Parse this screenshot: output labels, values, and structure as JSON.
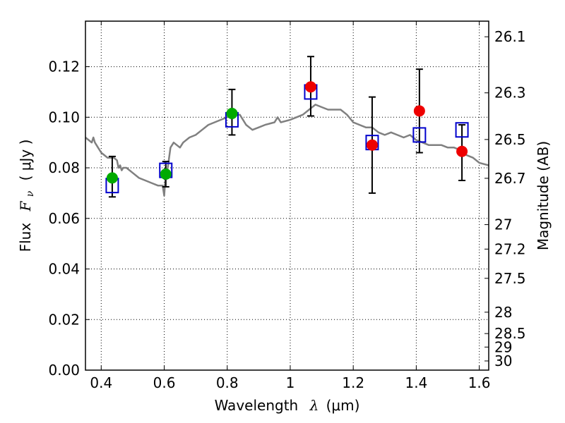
{
  "chart_data": {
    "type": "scatter",
    "title": "",
    "xlabel": {
      "prefix": "Wavelength",
      "symbol": "λ",
      "unit": "(μm)"
    },
    "ylabel": {
      "prefix": "Flux",
      "symbol": "F",
      "subscript": "ν",
      "unit": "( μJy )"
    },
    "y2label": "Magnitude (AB)",
    "xlim": [
      0.35,
      1.63
    ],
    "ylim": [
      0.0,
      0.138
    ],
    "grid": true,
    "legend": "none",
    "x_ticks": [
      {
        "value": 0.4,
        "label": "0.4"
      },
      {
        "value": 0.6,
        "label": "0.6"
      },
      {
        "value": 0.8,
        "label": "0.8"
      },
      {
        "value": 1.0,
        "label": "1"
      },
      {
        "value": 1.2,
        "label": "1.2"
      },
      {
        "value": 1.4,
        "label": "1.4"
      },
      {
        "value": 1.6,
        "label": "1.6"
      }
    ],
    "y_ticks": [
      {
        "value": 0.0,
        "label": "0.00"
      },
      {
        "value": 0.02,
        "label": "0.02"
      },
      {
        "value": 0.04,
        "label": "0.04"
      },
      {
        "value": 0.06,
        "label": "0.06"
      },
      {
        "value": 0.08,
        "label": "0.08"
      },
      {
        "value": 0.1,
        "label": "0.10"
      },
      {
        "value": 0.12,
        "label": "0.12"
      }
    ],
    "y2_ticks": [
      {
        "value": 26.1,
        "label": "26.1"
      },
      {
        "value": 26.3,
        "label": "26.3"
      },
      {
        "value": 26.5,
        "label": "26.5"
      },
      {
        "value": 26.7,
        "label": "26.7"
      },
      {
        "value": 27.0,
        "label": "27"
      },
      {
        "value": 27.2,
        "label": "27.2"
      },
      {
        "value": 27.5,
        "label": "27.5"
      },
      {
        "value": 28.0,
        "label": "28"
      },
      {
        "value": 28.5,
        "label": "28.5"
      },
      {
        "value": 29.0,
        "label": "29"
      },
      {
        "value": 30.0,
        "label": "30"
      }
    ],
    "series": [
      {
        "type": "line",
        "color": "#808080",
        "x": [
          0.35,
          0.37,
          0.375,
          0.38,
          0.39,
          0.4,
          0.41,
          0.42,
          0.43,
          0.44,
          0.45,
          0.455,
          0.46,
          0.465,
          0.47,
          0.48,
          0.5,
          0.52,
          0.54,
          0.56,
          0.58,
          0.595,
          0.6,
          0.605,
          0.61,
          0.62,
          0.63,
          0.64,
          0.65,
          0.66,
          0.68,
          0.7,
          0.72,
          0.74,
          0.76,
          0.78,
          0.8,
          0.82,
          0.84,
          0.86,
          0.88,
          0.9,
          0.92,
          0.95,
          0.96,
          0.97,
          1.0,
          1.02,
          1.04,
          1.06,
          1.08,
          1.1,
          1.12,
          1.14,
          1.16,
          1.18,
          1.2,
          1.22,
          1.24,
          1.26,
          1.28,
          1.3,
          1.32,
          1.34,
          1.36,
          1.38,
          1.4,
          1.42,
          1.44,
          1.46,
          1.48,
          1.5,
          1.52,
          1.54,
          1.56,
          1.58,
          1.6,
          1.63
        ],
        "y": [
          0.092,
          0.09,
          0.092,
          0.09,
          0.088,
          0.086,
          0.085,
          0.084,
          0.084,
          0.084,
          0.083,
          0.08,
          0.081,
          0.079,
          0.08,
          0.08,
          0.078,
          0.076,
          0.075,
          0.074,
          0.073,
          0.073,
          0.069,
          0.078,
          0.079,
          0.088,
          0.09,
          0.089,
          0.088,
          0.09,
          0.092,
          0.093,
          0.095,
          0.097,
          0.098,
          0.099,
          0.1,
          0.101,
          0.101,
          0.097,
          0.095,
          0.096,
          0.097,
          0.098,
          0.1,
          0.098,
          0.099,
          0.1,
          0.101,
          0.103,
          0.105,
          0.104,
          0.103,
          0.103,
          0.103,
          0.101,
          0.098,
          0.097,
          0.096,
          0.096,
          0.094,
          0.093,
          0.094,
          0.093,
          0.092,
          0.093,
          0.091,
          0.09,
          0.089,
          0.089,
          0.089,
          0.088,
          0.088,
          0.087,
          0.085,
          0.084,
          0.082,
          0.081
        ]
      },
      {
        "type": "scatter",
        "marker": "square",
        "color": "#0000cc",
        "x": [
          0.435,
          0.605,
          0.815,
          1.065,
          1.26,
          1.41,
          1.545
        ],
        "y": [
          0.073,
          0.079,
          0.099,
          0.11,
          0.09,
          0.093,
          0.095
        ]
      },
      {
        "type": "scatter",
        "marker": "circle",
        "color": "#00aa00",
        "x": [
          0.435,
          0.605,
          0.815
        ],
        "y": [
          0.076,
          0.0775,
          0.1015
        ],
        "yerr_low": [
          0.0685,
          0.0725,
          0.093
        ],
        "yerr_high": [
          0.0845,
          0.0825,
          0.111
        ]
      },
      {
        "type": "scatter",
        "marker": "circle",
        "color": "#ee0000",
        "x": [
          1.065,
          1.26,
          1.41,
          1.545
        ],
        "y": [
          0.112,
          0.089,
          0.1025,
          0.0865
        ],
        "yerr_low": [
          0.1005,
          0.07,
          0.086,
          0.075
        ],
        "yerr_high": [
          0.124,
          0.108,
          0.119,
          0.097
        ]
      }
    ]
  }
}
